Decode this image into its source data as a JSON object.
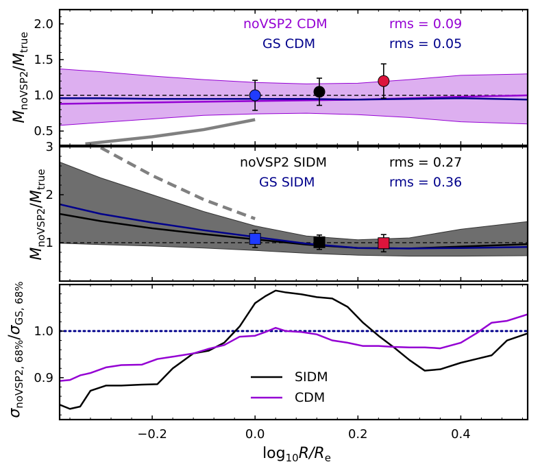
{
  "colors": {
    "purple": "#9400d3",
    "navy": "#00008b",
    "blue": "#1f3bff",
    "red": "#dc143c",
    "purple_band": "#c77ae6",
    "gray_band": "#555555",
    "gray_curve": "#808080"
  },
  "chart_data": [
    {
      "type": "line",
      "panel": "top",
      "ylabel_main": "M",
      "ylabel_sub": "noVSP2",
      "ylabel_den": "M",
      "ylabel_den_sub": "true",
      "xlim": [
        -0.38,
        0.53
      ],
      "ylim": [
        0.3,
        2.2
      ],
      "yticks": [
        0.5,
        1.0,
        1.5,
        2.0
      ],
      "ytick_labels": [
        "0.5",
        "1.0",
        "1.5",
        "2.0"
      ],
      "labels": {
        "novsp2": "noVSP2 CDM",
        "novsp2_rms": "rms = 0.09",
        "gs": "GS CDM",
        "gs_rms": "rms = 0.05"
      },
      "reference_line": 1.0,
      "x": [
        -0.38,
        -0.3,
        -0.2,
        -0.1,
        0.0,
        0.1,
        0.2,
        0.3,
        0.4,
        0.53
      ],
      "series": [
        {
          "name": "noVSP2 CDM",
          "values": [
            0.88,
            0.89,
            0.9,
            0.91,
            0.92,
            0.93,
            0.94,
            0.96,
            0.98,
            1.0
          ]
        },
        {
          "name": "GS CDM",
          "values": [
            0.96,
            0.96,
            0.95,
            0.95,
            0.95,
            0.95,
            0.94,
            0.95,
            0.96,
            0.94
          ]
        },
        {
          "name": "band_upper",
          "values": [
            1.37,
            1.33,
            1.27,
            1.22,
            1.18,
            1.16,
            1.17,
            1.22,
            1.28,
            1.3
          ]
        },
        {
          "name": "band_lower",
          "values": [
            0.58,
            0.62,
            0.67,
            0.72,
            0.74,
            0.75,
            0.73,
            0.69,
            0.63,
            0.6
          ]
        },
        {
          "name": "gray_curve",
          "x": [
            -0.33,
            -0.2,
            -0.1,
            0.0
          ],
          "values": [
            0.32,
            0.42,
            0.52,
            0.66
          ]
        }
      ],
      "points": [
        {
          "x": 0.0,
          "y": 1.0,
          "err": 0.21,
          "color": "blue",
          "marker": "circle"
        },
        {
          "x": 0.125,
          "y": 1.05,
          "err": 0.19,
          "color": "black",
          "marker": "circle"
        },
        {
          "x": 0.25,
          "y": 1.2,
          "err": 0.24,
          "color": "red",
          "marker": "circle"
        }
      ]
    },
    {
      "type": "line",
      "panel": "middle",
      "xlim": [
        -0.38,
        0.53
      ],
      "ylim": [
        0.2,
        3.0
      ],
      "yticks": [
        1,
        2,
        3
      ],
      "ytick_labels": [
        "1",
        "2",
        "3"
      ],
      "labels": {
        "novsp2": "noVSP2 SIDM",
        "novsp2_rms": "rms = 0.27",
        "gs": "GS SIDM",
        "gs_rms": "rms = 0.36"
      },
      "reference_line": 1.0,
      "x": [
        -0.38,
        -0.3,
        -0.2,
        -0.1,
        0.0,
        0.1,
        0.2,
        0.3,
        0.4,
        0.53
      ],
      "series": [
        {
          "name": "noVSP2 SIDM",
          "values": [
            1.6,
            1.45,
            1.3,
            1.18,
            1.07,
            0.96,
            0.89,
            0.88,
            0.92,
            0.97
          ]
        },
        {
          "name": "GS SIDM",
          "values": [
            1.8,
            1.6,
            1.42,
            1.26,
            1.12,
            0.98,
            0.89,
            0.88,
            0.89,
            0.91
          ]
        },
        {
          "name": "band_upper",
          "values": [
            2.68,
            2.35,
            2.0,
            1.65,
            1.35,
            1.14,
            1.06,
            1.1,
            1.28,
            1.44
          ]
        },
        {
          "name": "band_lower",
          "values": [
            0.99,
            0.96,
            0.93,
            0.89,
            0.84,
            0.78,
            0.74,
            0.72,
            0.72,
            0.73
          ]
        },
        {
          "name": "gray_dashed",
          "x": [
            -0.3,
            -0.2,
            -0.1,
            0.0
          ],
          "values": [
            2.98,
            2.4,
            1.9,
            1.5
          ]
        }
      ],
      "points": [
        {
          "x": 0.0,
          "y": 1.08,
          "err": 0.18,
          "color": "blue",
          "marker": "square"
        },
        {
          "x": 0.125,
          "y": 1.01,
          "err": 0.15,
          "color": "black",
          "marker": "square"
        },
        {
          "x": 0.25,
          "y": 0.99,
          "err": 0.18,
          "color": "red",
          "marker": "square"
        }
      ]
    },
    {
      "type": "line",
      "panel": "bottom",
      "xlabel": "log",
      "xlabel_sub": "10",
      "xlabel_rest": "R/R",
      "xlabel_rest_sub": "e",
      "ylabel_main": "σ",
      "ylabel_sub": "noVSP2, 68%",
      "ylabel_den": "σ",
      "ylabel_den_sub": "GS, 68%",
      "xlim": [
        -0.38,
        0.53
      ],
      "ylim": [
        0.81,
        1.1
      ],
      "xticks": [
        -0.2,
        0.0,
        0.2,
        0.4
      ],
      "xtick_labels": [
        "−0.2",
        "0.0",
        "0.2",
        "0.4"
      ],
      "yticks": [
        0.9,
        1.0
      ],
      "ytick_labels": [
        "0.9",
        "1.0"
      ],
      "reference_line": 1.0,
      "legend": [
        {
          "name": "SIDM",
          "color": "black"
        },
        {
          "name": "CDM",
          "color": "purple"
        }
      ],
      "series": [
        {
          "name": "SIDM",
          "x": [
            -0.38,
            -0.36,
            -0.34,
            -0.32,
            -0.29,
            -0.26,
            -0.22,
            -0.19,
            -0.16,
            -0.12,
            -0.09,
            -0.06,
            -0.03,
            0.0,
            0.02,
            0.04,
            0.06,
            0.09,
            0.12,
            0.15,
            0.18,
            0.21,
            0.24,
            0.27,
            0.3,
            0.33,
            0.36,
            0.4,
            0.43,
            0.46,
            0.49,
            0.53
          ],
          "values": [
            0.842,
            0.833,
            0.838,
            0.872,
            0.883,
            0.883,
            0.885,
            0.886,
            0.92,
            0.952,
            0.958,
            0.975,
            1.01,
            1.06,
            1.075,
            1.087,
            1.083,
            1.079,
            1.073,
            1.07,
            1.052,
            1.018,
            0.99,
            0.965,
            0.938,
            0.915,
            0.918,
            0.932,
            0.94,
            0.948,
            0.98,
            0.995
          ]
        },
        {
          "name": "CDM",
          "x": [
            -0.38,
            -0.36,
            -0.34,
            -0.32,
            -0.29,
            -0.26,
            -0.22,
            -0.19,
            -0.16,
            -0.12,
            -0.09,
            -0.06,
            -0.03,
            0.0,
            0.02,
            0.04,
            0.06,
            0.09,
            0.12,
            0.15,
            0.18,
            0.21,
            0.24,
            0.27,
            0.3,
            0.33,
            0.36,
            0.4,
            0.43,
            0.46,
            0.49,
            0.53
          ],
          "values": [
            0.893,
            0.895,
            0.905,
            0.91,
            0.922,
            0.927,
            0.928,
            0.94,
            0.945,
            0.952,
            0.962,
            0.97,
            0.988,
            0.99,
            0.998,
            1.007,
            1.0,
            0.998,
            0.993,
            0.98,
            0.975,
            0.968,
            0.968,
            0.966,
            0.965,
            0.965,
            0.963,
            0.975,
            0.995,
            1.018,
            1.022,
            1.036
          ]
        }
      ]
    }
  ]
}
